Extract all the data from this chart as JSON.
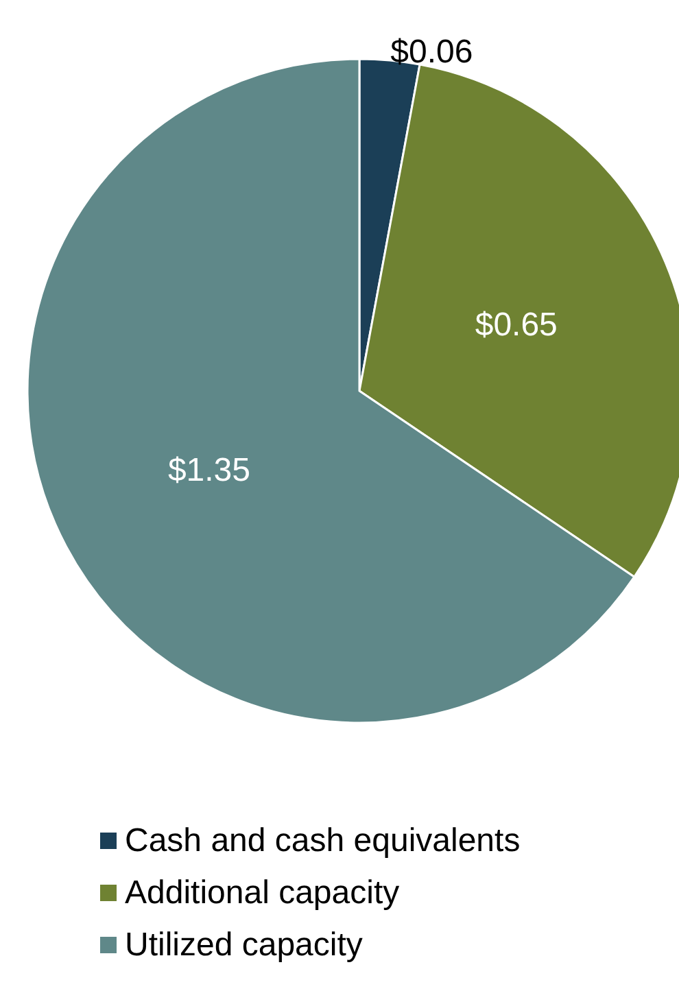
{
  "chart_data": {
    "type": "pie",
    "categories": [
      "Cash and cash equivalents",
      "Additional capacity",
      "Utilized capacity"
    ],
    "values": [
      0.06,
      0.65,
      1.35
    ],
    "colors": [
      "#1b3f57",
      "#6f8232",
      "#5f8889"
    ],
    "value_labels": [
      "$0.06",
      "$0.65",
      "$1.35"
    ],
    "legend": "bottom"
  }
}
